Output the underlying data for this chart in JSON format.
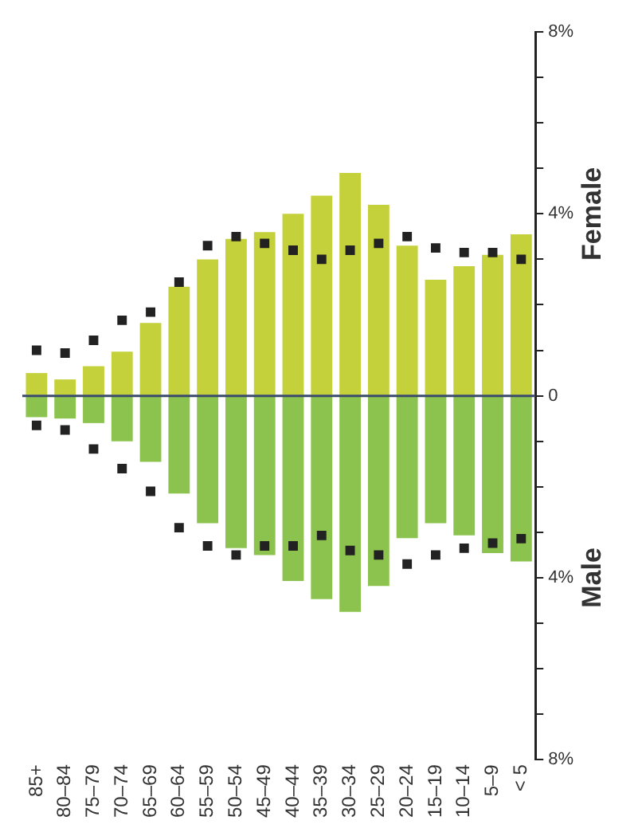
{
  "chart_data": {
    "type": "bar",
    "stacked": true,
    "categories": [
      "85+",
      "80–84",
      "75–79",
      "70–74",
      "65–69",
      "60–64",
      "55–59",
      "50–54",
      "45–49",
      "40–44",
      "35–39",
      "30–34",
      "25–29",
      "20–24",
      "15–19",
      "10–14",
      "5–9",
      "< 5"
    ],
    "series": [
      {
        "name": "Female",
        "color": "#c5d13a",
        "values": [
          0.5,
          0.36,
          0.65,
          0.97,
          1.6,
          2.4,
          3.0,
          3.45,
          3.6,
          4.0,
          4.4,
          4.9,
          4.2,
          3.3,
          2.55,
          2.85,
          3.1,
          3.55
        ]
      },
      {
        "name": "Male",
        "color": "#8cc34e",
        "values": [
          -0.47,
          -0.5,
          -0.6,
          -1.0,
          -1.45,
          -2.15,
          -2.8,
          -3.35,
          -3.5,
          -4.07,
          -4.47,
          -4.75,
          -4.18,
          -3.13,
          -2.8,
          -3.07,
          -3.46,
          -3.64
        ]
      },
      {
        "type": "scatter",
        "marker": "square",
        "color": "#222222",
        "x": [
          "85+",
          "80–84",
          "75–79",
          "70–74",
          "65–69",
          "60–64",
          "55–59",
          "50–54",
          "45–49",
          "40–44",
          "35–39",
          "30–34",
          "25–29",
          "20–24",
          "15–19",
          "10–14",
          "5–9",
          "< 5"
        ],
        "values": [
          1.0,
          0.94,
          1.22,
          1.66,
          1.84,
          2.5,
          3.3,
          3.5,
          3.35,
          3.2,
          3.0,
          3.2,
          3.35,
          3.5,
          3.25,
          3.15,
          3.15,
          3.0
        ]
      },
      {
        "type": "scatter",
        "marker": "square",
        "color": "#222222",
        "x": [
          "85+",
          "80–84",
          "75–79",
          "70–74",
          "65–69",
          "60–64",
          "55–59",
          "50–54",
          "45–49",
          "40–44",
          "35–39",
          "30–34",
          "25–29",
          "20–24",
          "15–19",
          "10–14",
          "5–9",
          "< 5"
        ],
        "values": [
          -0.65,
          -0.75,
          -1.17,
          -1.6,
          -2.1,
          -2.9,
          -3.3,
          -3.5,
          -3.3,
          -3.3,
          -3.07,
          -3.4,
          -3.5,
          -3.7,
          -3.5,
          -3.35,
          -3.24,
          -3.14
        ]
      }
    ],
    "ylim": [
      -8,
      8
    ],
    "yticks": [
      {
        "value": -8,
        "label": "8%"
      },
      {
        "value": -7,
        "label": null
      },
      {
        "value": -6,
        "label": null
      },
      {
        "value": -5,
        "label": null
      },
      {
        "value": -4,
        "label": "4%"
      },
      {
        "value": -3,
        "label": null
      },
      {
        "value": -2,
        "label": null
      },
      {
        "value": -1,
        "label": null
      },
      0,
      {
        "value": 1,
        "label": null
      },
      {
        "value": 2,
        "label": null
      },
      {
        "value": 3,
        "label": null
      },
      {
        "value": 4,
        "label": "4%"
      },
      {
        "value": 5,
        "label": null
      },
      {
        "value": 6,
        "label": null
      },
      {
        "value": 7,
        "label": null
      },
      {
        "value": 8,
        "label": "8%"
      }
    ],
    "ref_lines": [
      {
        "axis": "y",
        "value": 0,
        "color": "#3a4a6a"
      }
    ],
    "grid": false,
    "legend": false
  }
}
